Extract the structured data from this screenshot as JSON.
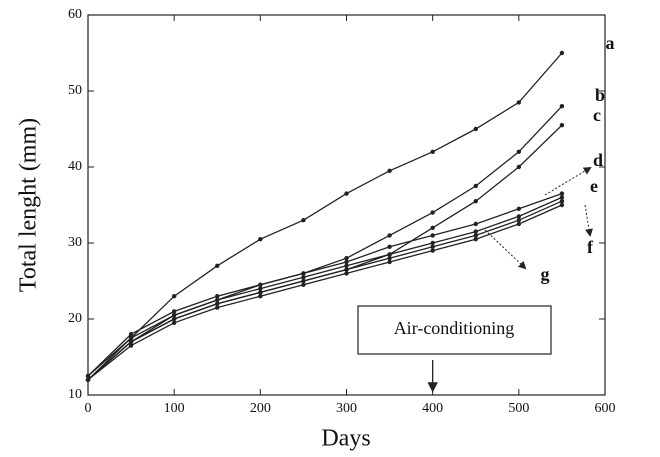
{
  "chart_data": {
    "type": "line",
    "x_label": "Days",
    "y_label": "Total lenght (mm)",
    "x": [
      0,
      50,
      100,
      150,
      200,
      250,
      300,
      350,
      400,
      450,
      500,
      550
    ],
    "series": [
      {
        "name": "a",
        "color": "#222",
        "values": [
          12,
          17.5,
          23,
          27,
          30.5,
          33,
          36.5,
          39.5,
          42,
          45,
          48.5,
          55
        ]
      },
      {
        "name": "b",
        "color": "#222",
        "values": [
          12,
          17,
          20.5,
          22.5,
          24.5,
          26,
          28,
          31,
          34,
          37.5,
          42,
          48
        ]
      },
      {
        "name": "c",
        "color": "#222",
        "values": [
          12,
          17,
          20,
          22,
          23.5,
          25,
          26.5,
          28.5,
          32,
          35.5,
          40,
          45.5
        ]
      },
      {
        "name": "d",
        "color": "#222",
        "values": [
          12.5,
          18,
          21,
          23,
          24.5,
          26,
          27.5,
          29.5,
          31,
          32.5,
          34.5,
          36.5
        ]
      },
      {
        "name": "e",
        "color": "#222",
        "values": [
          12.5,
          17.5,
          20.5,
          22.5,
          24,
          25.5,
          27,
          28.5,
          30,
          31.5,
          33.5,
          36
        ]
      },
      {
        "name": "f",
        "color": "#222",
        "values": [
          12,
          17,
          20,
          22,
          23.5,
          25,
          26.5,
          28,
          29.5,
          31,
          33,
          35.5
        ]
      },
      {
        "name": "g",
        "color": "#222",
        "values": [
          12,
          16.5,
          19.5,
          21.5,
          23,
          24.5,
          26,
          27.5,
          29,
          30.5,
          32.5,
          35
        ]
      }
    ],
    "annotation": {
      "text": "Air-conditioning",
      "x": 400
    },
    "xlim": [
      0,
      600
    ],
    "xticks": [
      0,
      100,
      200,
      300,
      400,
      500,
      600
    ],
    "ylim": [
      10,
      60
    ],
    "yticks": [
      10,
      20,
      30,
      40,
      50,
      60
    ]
  }
}
